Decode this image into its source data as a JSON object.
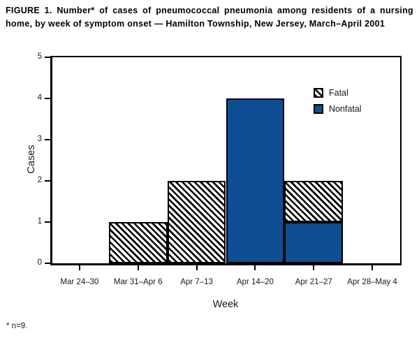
{
  "figure": {
    "title": "FIGURE 1. Number* of cases of pneumococcal pneumonia among residents of a nursing home, by week of symptom onset — Hamilton Township, New Jersey, March–April 2001",
    "footnote": "* n=9."
  },
  "colors": {
    "nonfatal_blue": "#0E4F93",
    "axis_black": "#000000"
  },
  "chart_data": {
    "type": "bar",
    "stacked": true,
    "title": "FIGURE 1. Number* of cases of pneumococcal pneumonia among residents of a nursing home, by week of symptom onset — Hamilton Township, New Jersey, March–April 2001",
    "categories": [
      "Mar 24–30",
      "Mar 31–Apr 6",
      "Apr 7–13",
      "Apr 14–20",
      "Apr 21–27",
      "Apr 28–May 4"
    ],
    "series": [
      {
        "name": "Nonfatal",
        "style": "solid",
        "color": "#0E4F93",
        "values": [
          0,
          0,
          0,
          4,
          1,
          0
        ]
      },
      {
        "name": "Fatal",
        "style": "hatch",
        "color": "#000000",
        "values": [
          0,
          1,
          2,
          0,
          1,
          0
        ]
      }
    ],
    "legend": [
      "Fatal",
      "Nonfatal"
    ],
    "legend_position": "upper-right",
    "xlabel": "Week",
    "ylabel": "Cases",
    "ylim": [
      0,
      5
    ],
    "yticks": [
      0,
      1,
      2,
      3,
      4,
      5
    ],
    "grid": false
  }
}
